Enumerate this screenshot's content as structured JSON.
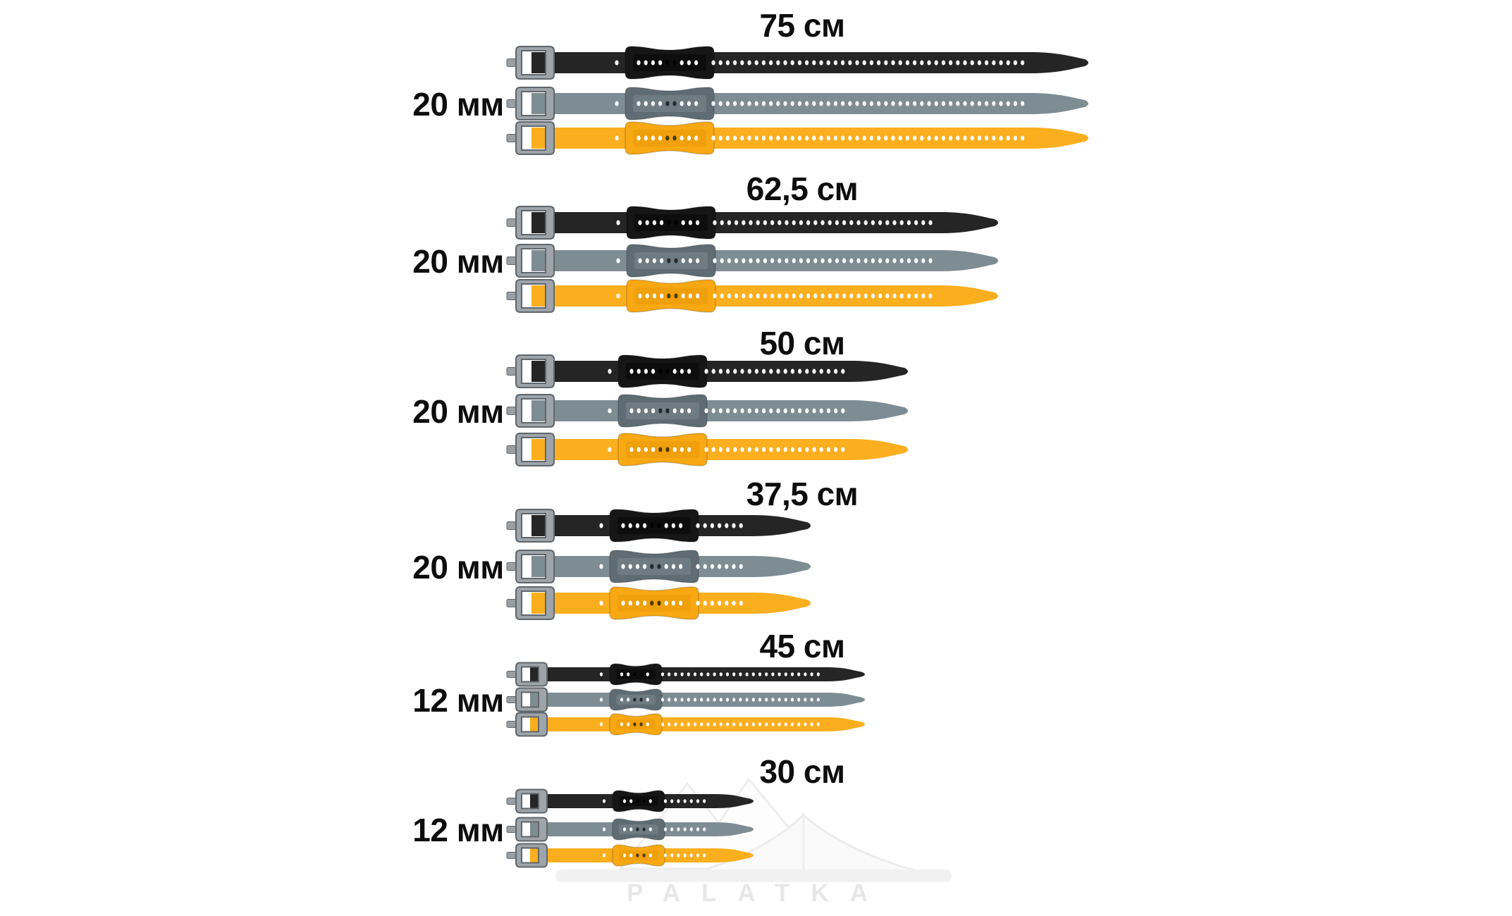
{
  "canvas": {
    "background": "#ffffff"
  },
  "groups": [
    {
      "length_label": "75 см",
      "length_cm": 75,
      "width_label": "20 мм",
      "width_mm": 20,
      "colors": [
        "black",
        "gray",
        "yellow"
      ]
    },
    {
      "length_label": "62,5 см",
      "length_cm": 62.5,
      "width_label": "20 мм",
      "width_mm": 20,
      "colors": [
        "black",
        "gray",
        "yellow"
      ]
    },
    {
      "length_label": "50 см",
      "length_cm": 50,
      "width_label": "20 мм",
      "width_mm": 20,
      "colors": [
        "black",
        "gray",
        "yellow"
      ]
    },
    {
      "length_label": "37,5 см",
      "length_cm": 37.5,
      "width_label": "20 мм",
      "width_mm": 20,
      "colors": [
        "black",
        "gray",
        "yellow"
      ]
    },
    {
      "length_label": "45 см",
      "length_cm": 45,
      "width_label": "12 мм",
      "width_mm": 12,
      "colors": [
        "black",
        "gray",
        "yellow"
      ]
    },
    {
      "length_label": "30 см",
      "length_cm": 30,
      "width_label": "12 мм",
      "width_mm": 12,
      "colors": [
        "black",
        "gray",
        "yellow"
      ]
    }
  ],
  "strap_colors": {
    "black": {
      "body": "#252525",
      "keeper": "#161616",
      "window": "#0d0d0d",
      "dark_hole": "#000000"
    },
    "gray": {
      "body": "#7E8C94",
      "keeper": "#5F6C74",
      "window": "#6E7B83",
      "dark_hole": "#22282c"
    },
    "yellow": {
      "body": "#FBAE1E",
      "keeper": "#F8A812",
      "window": "#EFA00C",
      "dark_hole": "#4a3a06"
    }
  },
  "buckle": {
    "frame": "#9DA5AA",
    "edge": "#60676C",
    "nub": "#98A0A5",
    "slot": "#ffffff"
  },
  "hole_color": "#ffffff",
  "label_color": "#0d0d0d",
  "watermark": {
    "text": "PALATKA",
    "color": "#e7e7e7"
  }
}
